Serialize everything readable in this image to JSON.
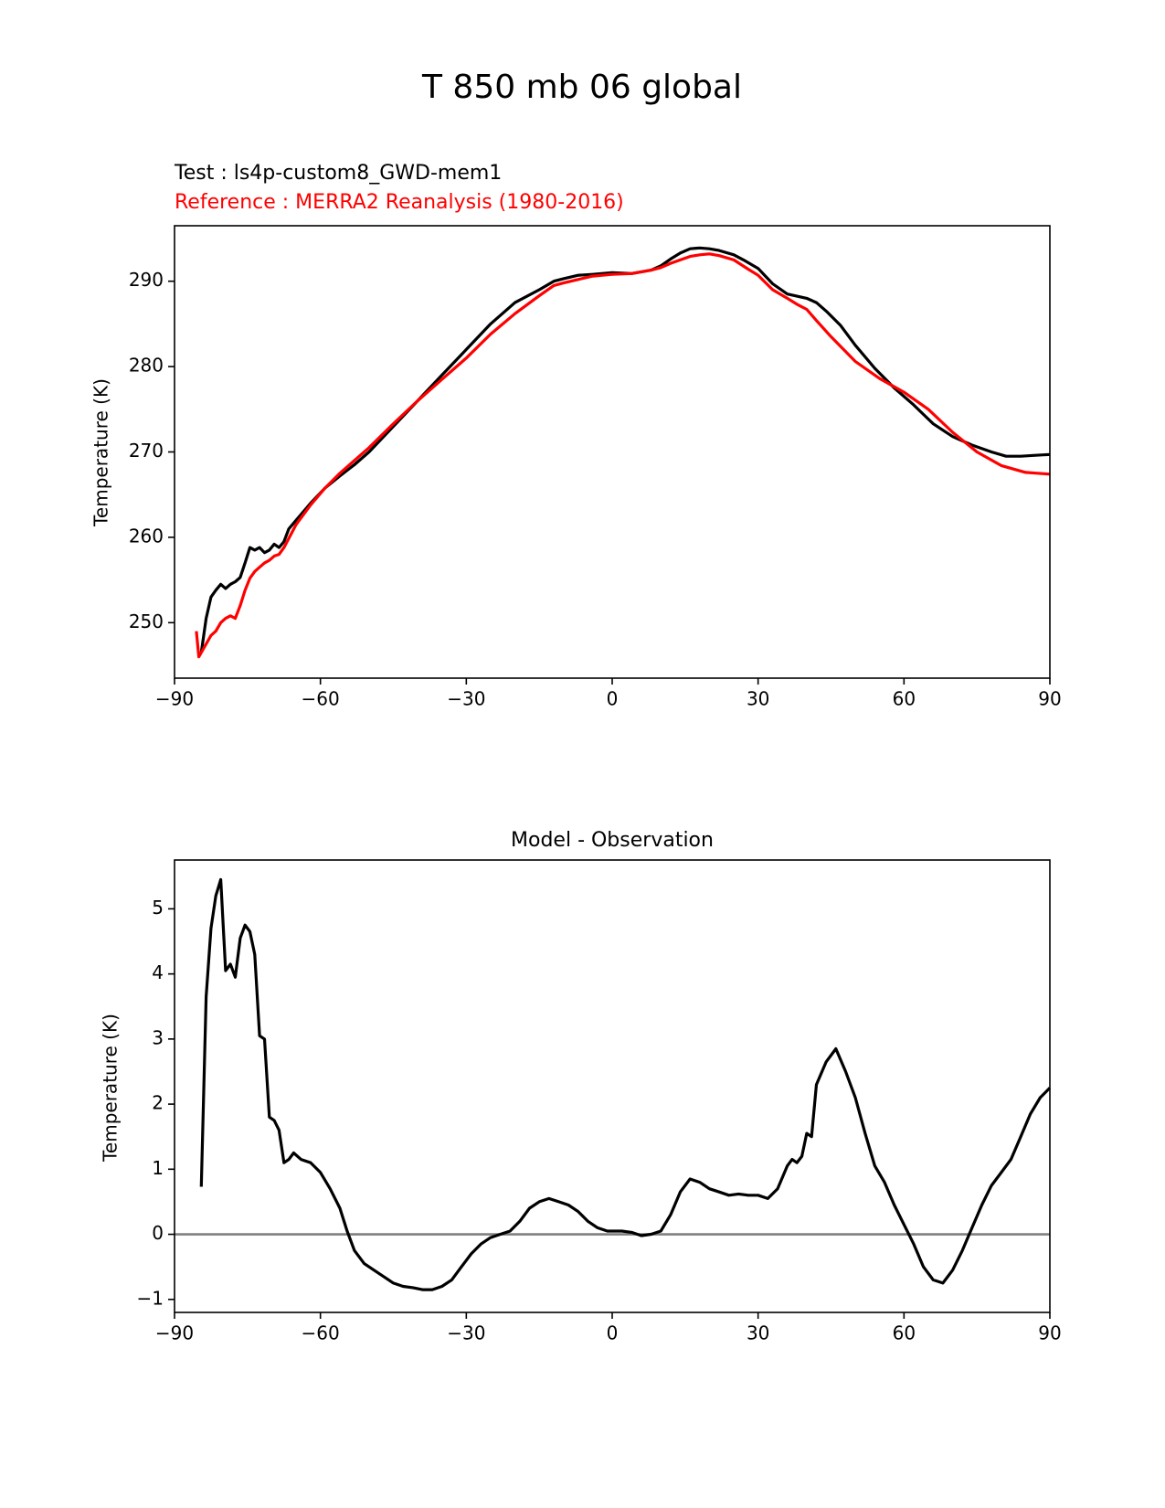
{
  "figure": {
    "title": "T 850 mb 06 global"
  },
  "colors": {
    "test": "#000000",
    "reference": "#ff0000",
    "zero_line": "#808080",
    "axes": "#000000"
  },
  "chart_data": [
    {
      "type": "line",
      "title_test": "Test : ls4p-custom8_GWD-mem1",
      "title_reference": "Reference : MERRA2 Reanalysis (1980-2016)",
      "xlabel": "",
      "ylabel": "Temperature (K)",
      "xlim": [
        -90,
        90
      ],
      "ylim": [
        243.5,
        296.5
      ],
      "xticks": [
        -90,
        -60,
        -30,
        0,
        30,
        60,
        90
      ],
      "xtick_labels": [
        "−90",
        "−60",
        "−30",
        "0",
        "30",
        "60",
        "90"
      ],
      "yticks": [
        250,
        260,
        270,
        280,
        290
      ],
      "ytick_labels": [
        "250",
        "260",
        "270",
        "280",
        "290"
      ],
      "series": [
        {
          "name": "Test : ls4p-custom8_GWD-mem1",
          "color": "#000000",
          "x": [
            -84.5,
            -83.5,
            -82.5,
            -81.5,
            -80.5,
            -79.5,
            -78.5,
            -77.5,
            -76.5,
            -75.5,
            -74.5,
            -73.5,
            -72.5,
            -71.5,
            -70.5,
            -69.5,
            -68.5,
            -67.5,
            -66.5,
            -65,
            -62,
            -59,
            -56,
            -53,
            -50,
            -45,
            -40,
            -35,
            -30,
            -25,
            -20,
            -15,
            -12,
            -10,
            -7,
            -4,
            0,
            4,
            8,
            10,
            12,
            14,
            16,
            18,
            20,
            22,
            25,
            27,
            30,
            33,
            36,
            40,
            42,
            44,
            47,
            50,
            54,
            58,
            62,
            66,
            70,
            74,
            78,
            81,
            84,
            87,
            90
          ],
          "values": [
            246.5,
            250.5,
            253.0,
            253.8,
            254.5,
            254.0,
            254.5,
            254.8,
            255.3,
            257.0,
            258.8,
            258.5,
            258.8,
            258.2,
            258.5,
            259.2,
            258.8,
            259.5,
            261.0,
            262.0,
            264.0,
            265.8,
            267.2,
            268.5,
            270.0,
            273.0,
            276.0,
            279.0,
            282.0,
            285.0,
            287.5,
            289.0,
            290.0,
            290.3,
            290.7,
            290.8,
            291.0,
            290.9,
            291.3,
            291.8,
            292.6,
            293.3,
            293.8,
            293.9,
            293.8,
            293.6,
            293.1,
            292.5,
            291.5,
            289.7,
            288.5,
            288.0,
            287.5,
            286.5,
            284.8,
            282.5,
            279.8,
            277.5,
            275.5,
            273.3,
            271.8,
            270.8,
            270.0,
            269.5,
            269.5,
            269.6,
            269.7
          ]
        },
        {
          "name": "Reference : MERRA2 Reanalysis (1980-2016)",
          "color": "#ff0000",
          "x": [
            -85.5,
            -85,
            -84.5,
            -83.5,
            -82.5,
            -81.5,
            -80.5,
            -79.5,
            -78.5,
            -77.5,
            -76.5,
            -75.5,
            -74.5,
            -73.5,
            -72.5,
            -71.5,
            -70.5,
            -69.5,
            -68.5,
            -67.5,
            -65,
            -62,
            -59,
            -56,
            -53,
            -50,
            -45,
            -40,
            -35,
            -30,
            -25,
            -20,
            -15,
            -12,
            -10,
            -7,
            -4,
            0,
            4,
            8,
            10,
            12,
            14,
            16,
            18,
            20,
            22,
            25,
            28,
            30,
            33,
            36,
            38,
            40,
            42,
            45,
            50,
            55,
            60,
            65,
            70,
            75,
            80,
            85,
            90
          ],
          "values": [
            249.0,
            246.0,
            246.5,
            247.5,
            248.5,
            249.0,
            250.0,
            250.5,
            250.8,
            250.5,
            252.0,
            253.8,
            255.2,
            256.0,
            256.5,
            257.0,
            257.3,
            257.8,
            258.0,
            258.8,
            261.5,
            263.8,
            265.8,
            267.5,
            269.0,
            270.5,
            273.3,
            276.0,
            278.5,
            281.0,
            283.8,
            286.2,
            288.3,
            289.5,
            289.8,
            290.2,
            290.6,
            290.8,
            290.9,
            291.3,
            291.6,
            292.1,
            292.5,
            292.9,
            293.1,
            293.2,
            293.0,
            292.5,
            291.4,
            290.7,
            289.0,
            288.0,
            287.3,
            286.7,
            285.4,
            283.5,
            280.6,
            278.6,
            277.0,
            275.0,
            272.3,
            270.0,
            268.4,
            267.6,
            267.4
          ]
        }
      ]
    },
    {
      "type": "line",
      "title": "Model - Observation",
      "xlabel": "",
      "ylabel": "Temperature (K)",
      "xlim": [
        -90,
        90
      ],
      "ylim": [
        -1.2,
        5.75
      ],
      "xticks": [
        -90,
        -60,
        -30,
        0,
        30,
        60,
        90
      ],
      "xtick_labels": [
        "−90",
        "−60",
        "−30",
        "0",
        "30",
        "60",
        "90"
      ],
      "yticks": [
        -1,
        0,
        1,
        2,
        3,
        4,
        5
      ],
      "ytick_labels": [
        "−1",
        "0",
        "1",
        "2",
        "3",
        "4",
        "5"
      ],
      "zero_line": 0,
      "series": [
        {
          "name": "Model - Observation",
          "color": "#000000",
          "x": [
            -84.5,
            -83.5,
            -82.5,
            -81.5,
            -80.5,
            -79.5,
            -78.5,
            -77.5,
            -76.5,
            -75.5,
            -74.5,
            -73.5,
            -72.5,
            -71.5,
            -70.5,
            -69.5,
            -68.5,
            -67.5,
            -66.5,
            -65.5,
            -64,
            -62,
            -60,
            -58,
            -56,
            -54.5,
            -53,
            -51,
            -49,
            -47,
            -45,
            -43,
            -41,
            -39,
            -37,
            -35,
            -33,
            -31,
            -29,
            -27,
            -25,
            -23,
            -21,
            -19,
            -17,
            -15,
            -13,
            -11,
            -9,
            -7,
            -5,
            -3,
            -1,
            0,
            2,
            4,
            6,
            8,
            10,
            12,
            14,
            16,
            18,
            20,
            22,
            24,
            26,
            28,
            30,
            32,
            34,
            36,
            37,
            38,
            39,
            40,
            41,
            42,
            44,
            46,
            48,
            50,
            52,
            54,
            56,
            58,
            60,
            62,
            64,
            66,
            68,
            70,
            72,
            74,
            76,
            78,
            80,
            82,
            84,
            86,
            88,
            90
          ],
          "values": [
            0.73,
            3.65,
            4.7,
            5.2,
            5.45,
            4.05,
            4.15,
            3.95,
            4.55,
            4.75,
            4.65,
            4.3,
            3.05,
            3.0,
            1.8,
            1.75,
            1.6,
            1.1,
            1.15,
            1.25,
            1.15,
            1.1,
            0.95,
            0.7,
            0.4,
            0.05,
            -0.25,
            -0.45,
            -0.55,
            -0.65,
            -0.75,
            -0.8,
            -0.82,
            -0.85,
            -0.85,
            -0.8,
            -0.7,
            -0.5,
            -0.3,
            -0.15,
            -0.05,
            0.0,
            0.05,
            0.2,
            0.4,
            0.5,
            0.55,
            0.5,
            0.45,
            0.35,
            0.2,
            0.1,
            0.05,
            0.05,
            0.05,
            0.03,
            -0.02,
            0.0,
            0.05,
            0.3,
            0.65,
            0.85,
            0.8,
            0.7,
            0.65,
            0.6,
            0.62,
            0.6,
            0.6,
            0.55,
            0.7,
            1.05,
            1.15,
            1.1,
            1.2,
            1.55,
            1.5,
            2.3,
            2.65,
            2.85,
            2.5,
            2.1,
            1.55,
            1.05,
            0.8,
            0.45,
            0.15,
            -0.15,
            -0.5,
            -0.7,
            -0.75,
            -0.55,
            -0.25,
            0.1,
            0.45,
            0.75,
            0.95,
            1.15,
            1.5,
            1.85,
            2.1,
            2.25
          ]
        }
      ]
    }
  ]
}
